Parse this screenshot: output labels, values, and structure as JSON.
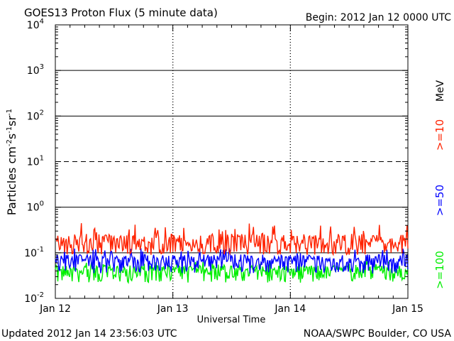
{
  "header": {
    "title": "GOES13 Proton Flux (5 minute data)",
    "begin": "Begin: 2012 Jan 12 0000 UTC"
  },
  "footer": {
    "updated": "Updated 2012 Jan 14 23:56:03 UTC",
    "credit": "NOAA/SWPC Boulder, CO USA"
  },
  "chart_data": {
    "type": "line",
    "title": "GOES13 Proton Flux (5 minute data)",
    "xlabel": "Universal Time",
    "ylabel_parts": {
      "base": "Particles cm",
      "exp1": "-2",
      "mid1": "s",
      "exp2": "-1",
      "mid2": "sr",
      "exp3": "-1"
    },
    "y_scale": "log",
    "ylim": [
      0.01,
      10000
    ],
    "y_ticks": [
      {
        "value": 0.01,
        "base": "10",
        "exp": "-2"
      },
      {
        "value": 0.1,
        "base": "10",
        "exp": "-1"
      },
      {
        "value": 1,
        "base": "10",
        "exp": "0"
      },
      {
        "value": 10,
        "base": "10",
        "exp": "1"
      },
      {
        "value": 100,
        "base": "10",
        "exp": "2"
      },
      {
        "value": 1000,
        "base": "10",
        "exp": "3"
      },
      {
        "value": 10000,
        "base": "10",
        "exp": "4"
      }
    ],
    "x_ticks": [
      "Jan 12",
      "Jan 13",
      "Jan 14",
      "Jan 15"
    ],
    "xlim_days": [
      0,
      3
    ],
    "threshold_lines": [
      {
        "value": 10,
        "style": "dashed"
      },
      {
        "value": 1,
        "style": "solid"
      },
      {
        "value": 0.1,
        "style": "solid"
      }
    ],
    "legend_unit": "MeV",
    "series": [
      {
        "name": ">=10",
        "color": "#ff2200",
        "typical": 0.15,
        "min": 0.09,
        "max": 0.45
      },
      {
        "name": ">=50",
        "color": "#0000ff",
        "typical": 0.065,
        "min": 0.035,
        "max": 0.13
      },
      {
        "name": ">=100",
        "color": "#00ee00",
        "typical": 0.04,
        "min": 0.022,
        "max": 0.07
      }
    ]
  }
}
